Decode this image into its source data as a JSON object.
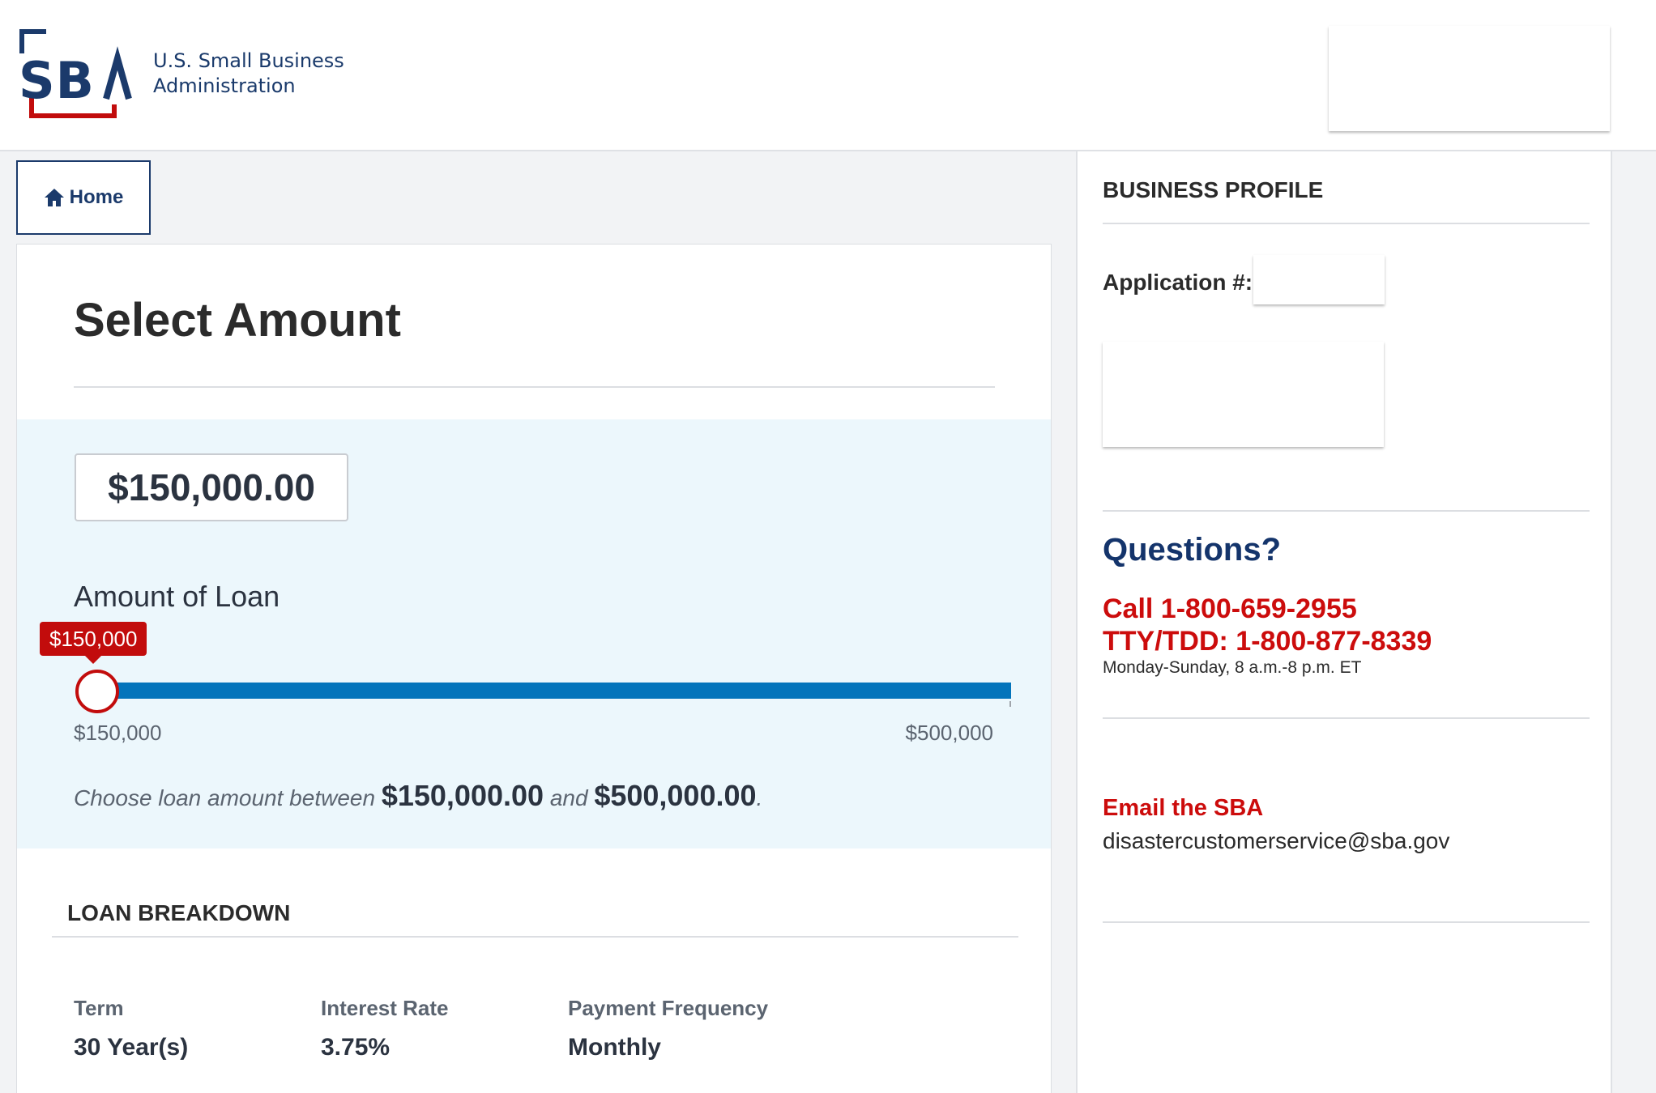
{
  "header": {
    "logo_alt": "SBA",
    "agency_line1": "U.S. Small Business",
    "agency_line2": "Administration"
  },
  "nav": {
    "home_label": "Home"
  },
  "page": {
    "title": "Select Amount"
  },
  "loan": {
    "selected_amount": "$150,000.00",
    "amount_label": "Amount of Loan",
    "slider_tooltip": "$150,000",
    "slider_min": "$150,000",
    "slider_max": "$500,000",
    "slider_value_fraction": 0.0,
    "range_note_prefix": "Choose loan amount between",
    "range_min": "$150,000.00",
    "range_and": "and",
    "range_max": "$500,000.00",
    "range_suffix": "."
  },
  "breakdown": {
    "title": "LOAN BREAKDOWN",
    "items": [
      {
        "label": "Term",
        "value": "30 Year(s)"
      },
      {
        "label": "Interest Rate",
        "value": "3.75%"
      },
      {
        "label": "Payment Frequency",
        "value": "Monthly"
      }
    ]
  },
  "sidebar": {
    "profile_title": "BUSINESS PROFILE",
    "application_label": "Application #:",
    "questions_title": "Questions?",
    "phone_line": "Call 1-800-659-2955",
    "tty_line": "TTY/TDD: 1-800-877-8339",
    "hours": "Monday-Sunday, 8 a.m.-8 p.m. ET",
    "email_title": "Email the SBA",
    "email_address": "disastercustomerservice@sba.gov"
  },
  "colors": {
    "brand_navy": "#1b3a6b",
    "brand_red": "#c20c0c",
    "slider_blue": "#0374bb",
    "panel_bg": "#ecf7fc"
  }
}
